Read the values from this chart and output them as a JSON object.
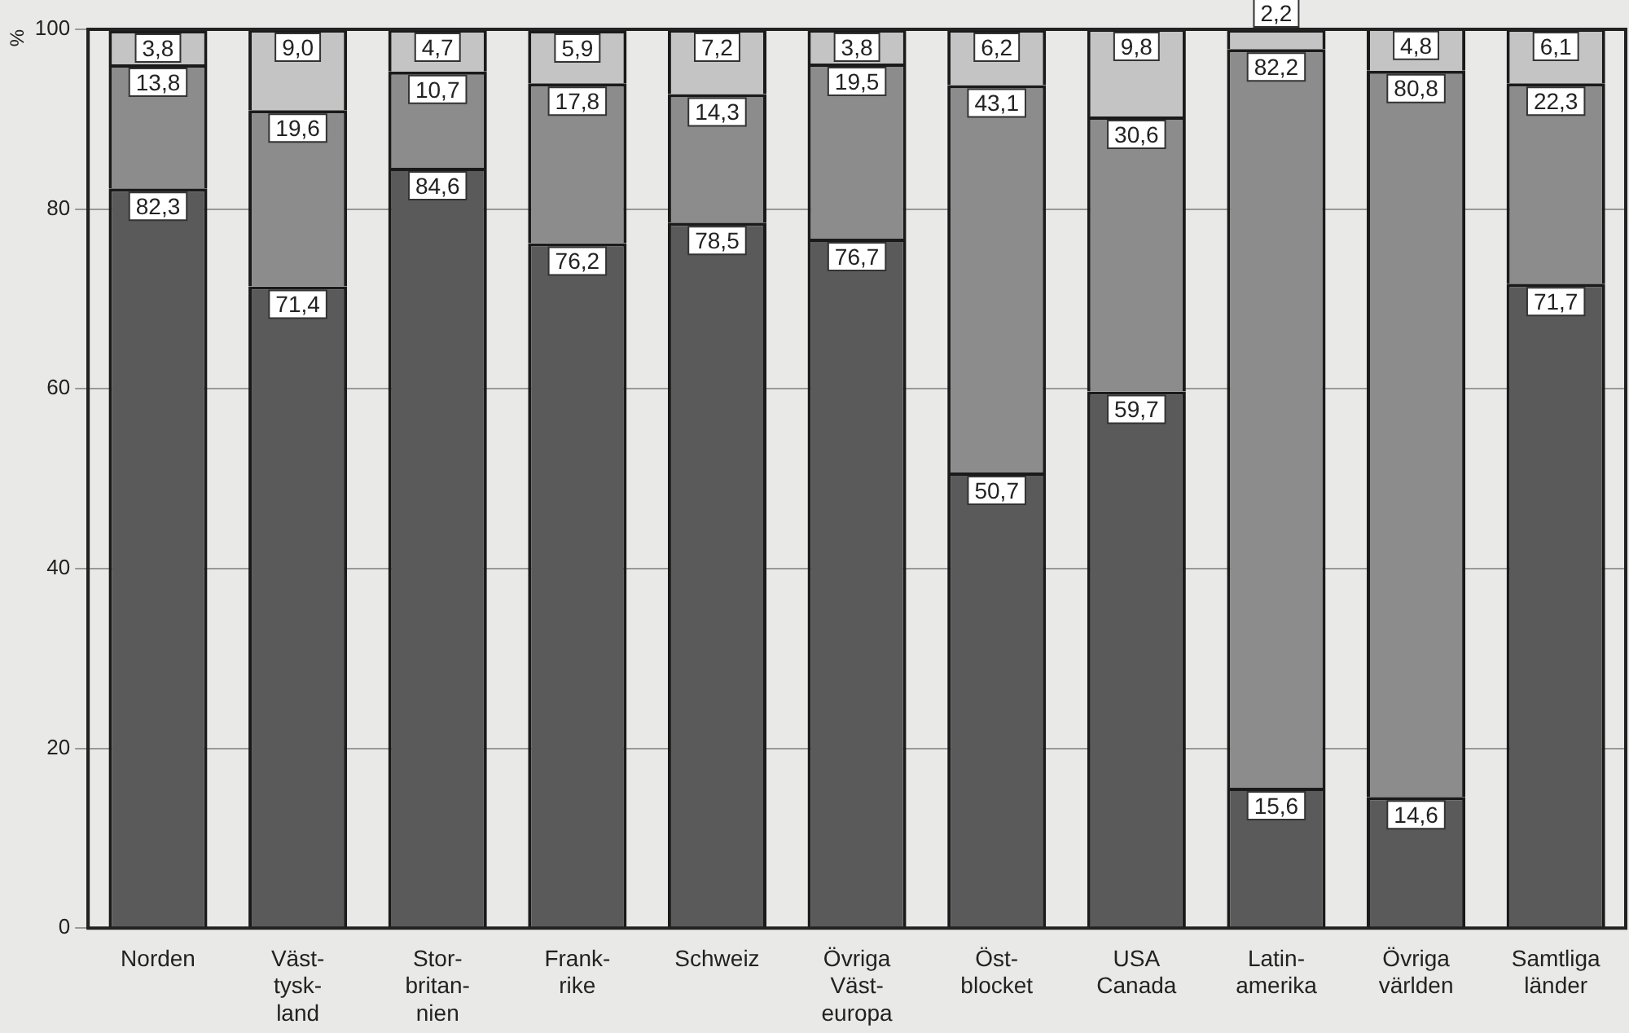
{
  "chart_data": {
    "type": "bar",
    "stacked": true,
    "ylabel": "%",
    "categories": [
      "Norden",
      "Väst-\ntysk-\nland",
      "Stor-\nbritan-\nnien",
      "Frank-\nrike",
      "Schweiz",
      "Övriga\nVäst-\neuropa",
      "Öst-\nblocket",
      "USA\nCanada",
      "Latin-\namerika",
      "Övriga\nvärlden",
      "Samtliga\nländer"
    ],
    "series": [
      {
        "color": "#5a5a5a",
        "values": [
          82.3,
          71.4,
          84.6,
          76.2,
          78.5,
          76.7,
          50.7,
          59.7,
          15.6,
          14.6,
          71.7
        ],
        "value_labels": [
          "82,3",
          "71,4",
          "84,6",
          "76,2",
          "78,5",
          "76,7",
          "50,7",
          "59,7",
          "15,6",
          "14,6",
          "71,7"
        ]
      },
      {
        "color": "#8c8c8c",
        "values": [
          13.8,
          19.6,
          10.7,
          17.8,
          14.3,
          19.5,
          43.1,
          30.6,
          82.2,
          80.8,
          22.3
        ],
        "value_labels": [
          "13,8",
          "19,6",
          "10,7",
          "17,8",
          "14,3",
          "19,5",
          "43,1",
          "30,6",
          "82,2",
          "80,8",
          "22,3"
        ]
      },
      {
        "color": "#c4c4c4",
        "values": [
          3.8,
          9.0,
          4.7,
          5.9,
          7.2,
          3.8,
          6.2,
          9.8,
          2.2,
          4.8,
          6.1
        ],
        "value_labels": [
          "3,8",
          "9,0",
          "4,7",
          "5,9",
          "7,2",
          "3,8",
          "6,2",
          "9,8",
          "2,2",
          "4,8",
          "6,1"
        ]
      }
    ],
    "ylim": [
      0,
      100
    ],
    "yticks": [
      0,
      20,
      40,
      60,
      80,
      100
    ],
    "grid": "y"
  }
}
